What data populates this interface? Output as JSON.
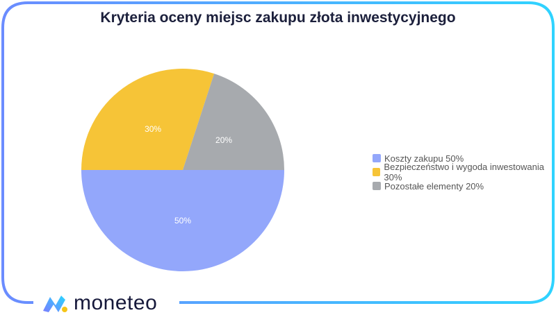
{
  "chart_data": {
    "type": "pie",
    "title": "Kryteria oceny miejsc zakupu złota inwestycyjnego",
    "slices": [
      {
        "label": "Koszty zakupu 50%",
        "value": 50,
        "data_label": "50%",
        "color": "#93a7fb"
      },
      {
        "label": "Bezpieczeństwo i wygoda inwestowania 30%",
        "value": 30,
        "data_label": "30%",
        "color": "#f6c437"
      },
      {
        "label": "Pozostałe elementy 20%",
        "value": 20,
        "data_label": "20%",
        "color": "#a7aaae"
      }
    ],
    "legend_position": "right"
  },
  "brand": {
    "name": "moneteo",
    "frame_colors": [
      "#6b8cff",
      "#2fd3ff"
    ],
    "dot_color": "#f5c518"
  }
}
